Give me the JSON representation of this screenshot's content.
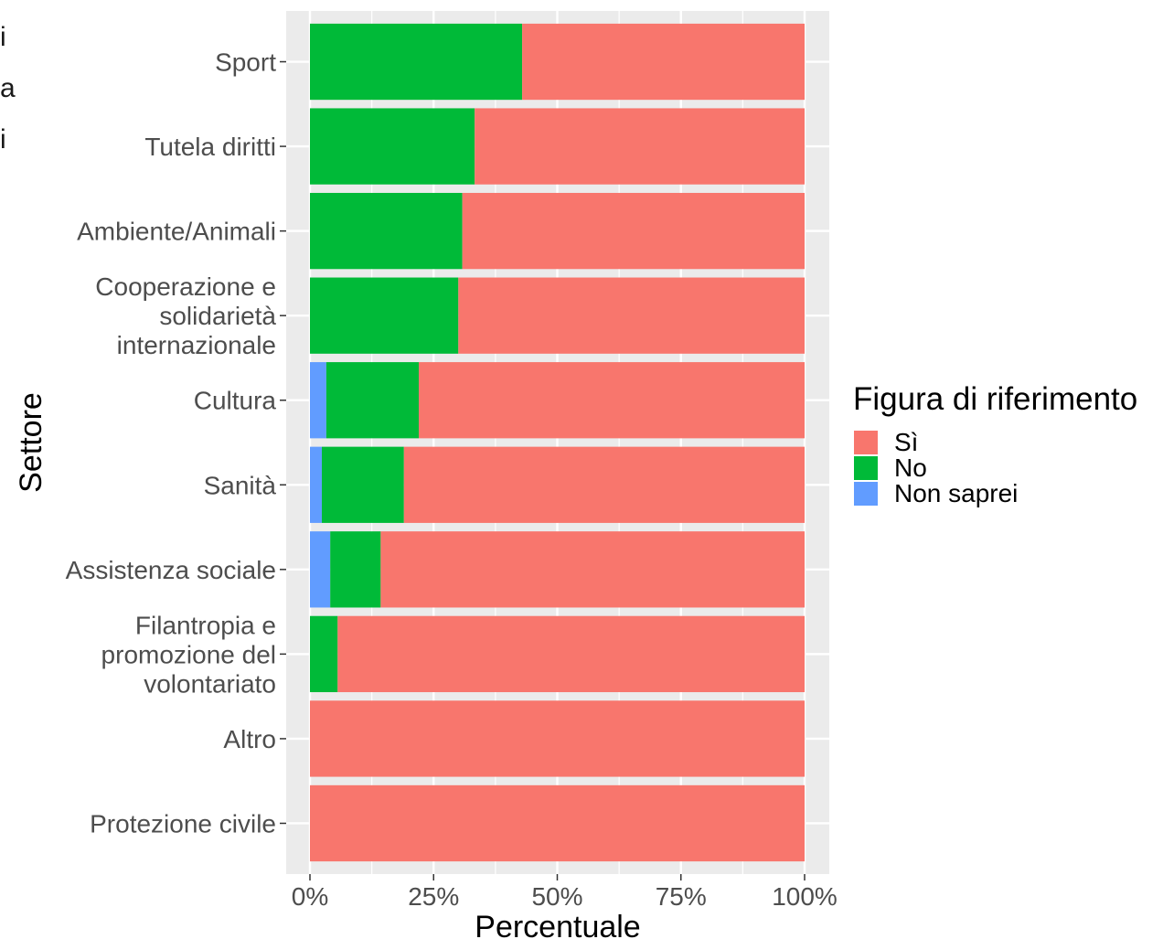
{
  "clipped_left_text": [
    "i",
    "a",
    "i"
  ],
  "chart_data": {
    "type": "bar",
    "orientation": "horizontal",
    "stacked": true,
    "xlabel": "Percentuale",
    "ylabel": "Settore",
    "xlim": [
      0,
      100
    ],
    "x_ticks": [
      "0%",
      "25%",
      "50%",
      "75%",
      "100%"
    ],
    "x_tick_values": [
      0,
      25,
      50,
      75,
      100
    ],
    "grid": true,
    "categories": [
      [
        "Sport"
      ],
      [
        "Tutela diritti"
      ],
      [
        "Ambiente/Animali"
      ],
      [
        "Cooperazione e",
        "solidarietà",
        "internazionale"
      ],
      [
        "Cultura"
      ],
      [
        "Sanità"
      ],
      [
        "Assistenza sociale"
      ],
      [
        "Filantropia e",
        "promozione del",
        "volontariato"
      ],
      [
        "Altro"
      ],
      [
        "Protezione civile"
      ]
    ],
    "legend": {
      "title": "Figura di riferimento",
      "placement": "right",
      "entries": [
        "Sì",
        "No",
        "Non saprei"
      ]
    },
    "series": [
      {
        "name": "Non saprei",
        "color": "#619CFF",
        "values": [
          0,
          0,
          0,
          0,
          3.3,
          2.4,
          4.1,
          0,
          0,
          0
        ]
      },
      {
        "name": "No",
        "color": "#00BA38",
        "values": [
          42.9,
          33.3,
          30.8,
          30.0,
          18.7,
          16.6,
          10.2,
          5.6,
          0,
          0
        ]
      },
      {
        "name": "Sì",
        "color": "#F8766D",
        "values": [
          57.1,
          66.7,
          69.2,
          70.0,
          78.0,
          81.0,
          85.7,
          94.4,
          100,
          100
        ]
      }
    ]
  }
}
